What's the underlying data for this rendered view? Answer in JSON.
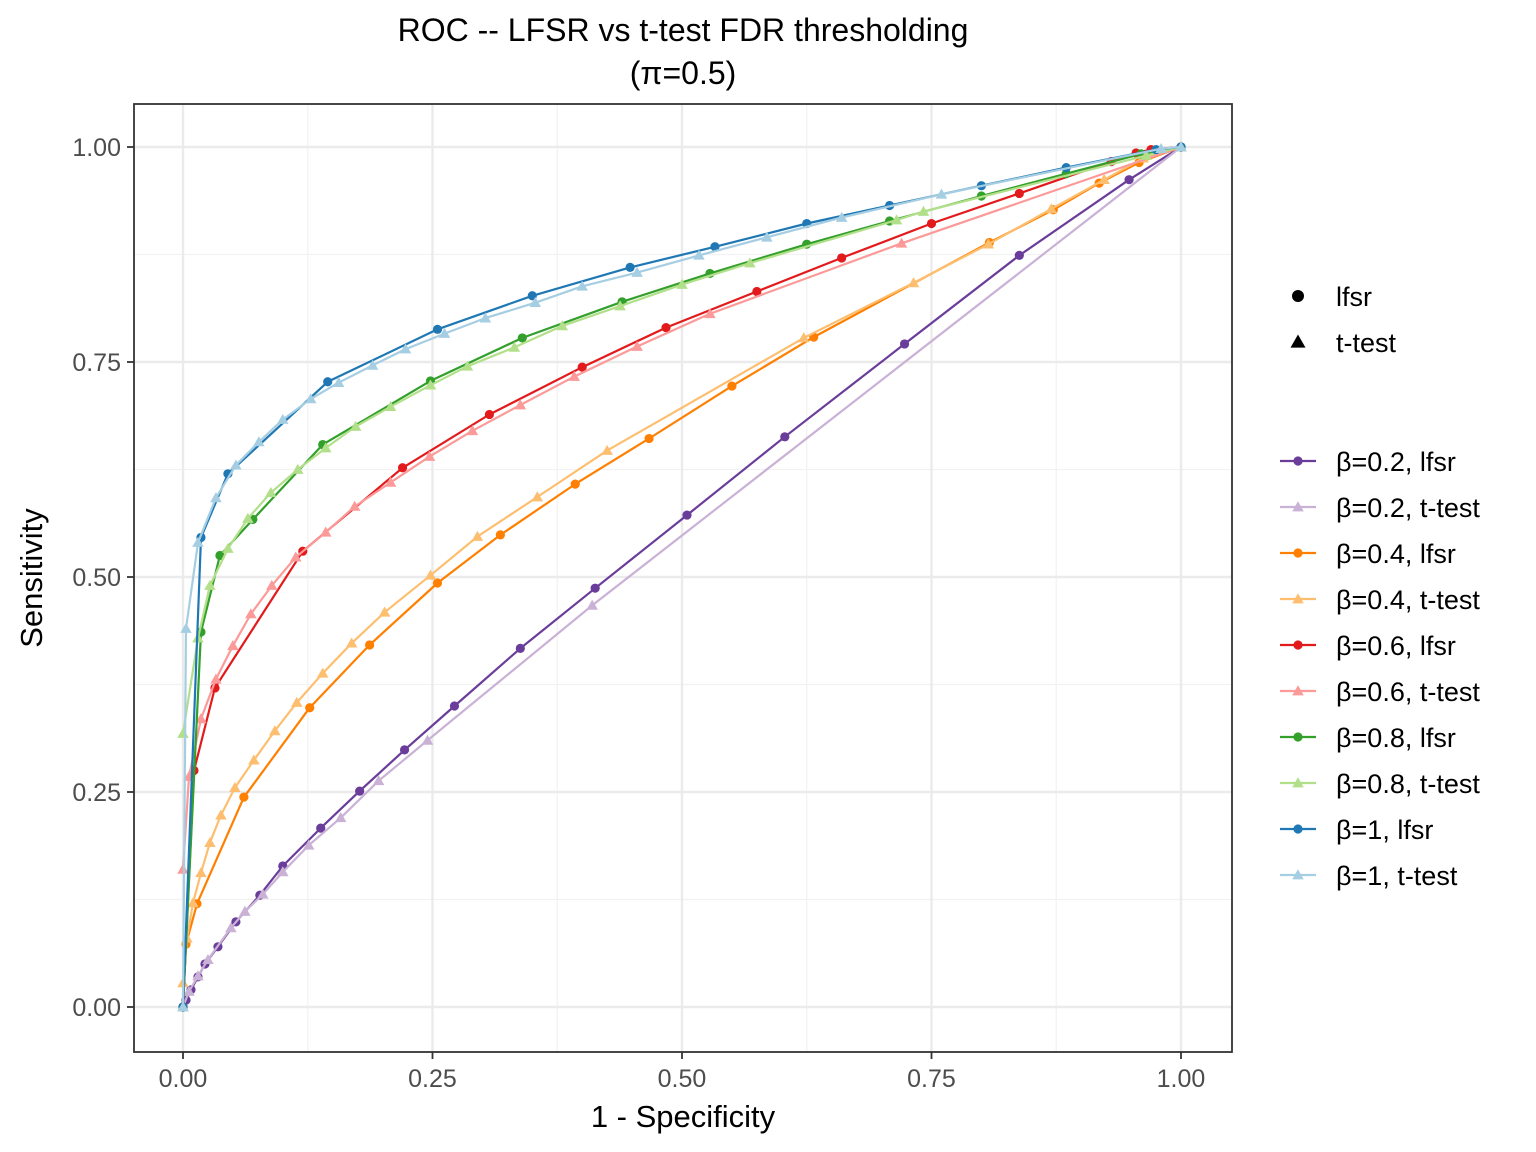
{
  "chart_data": {
    "type": "line",
    "title": "ROC -- LFSR vs t-test FDR thresholding",
    "subtitle": "(π=0.5)",
    "xlabel": "1 - Specificity",
    "ylabel": "Sensitivity",
    "xlim": [
      0,
      1
    ],
    "ylim": [
      0,
      1
    ],
    "xticks": [
      "0.00",
      "0.25",
      "0.50",
      "0.75",
      "1.00"
    ],
    "yticks": [
      "0.00",
      "0.25",
      "0.50",
      "0.75",
      "1.00"
    ],
    "grid": true,
    "legend_position": "right",
    "shape_legend": [
      {
        "label": "lfsr",
        "shape": "circle"
      },
      {
        "label": "t-test",
        "shape": "triangle"
      }
    ],
    "series": [
      {
        "name": "β=0.2, lfsr",
        "color": "#6a3d9a",
        "shape": "circle",
        "x": [
          0,
          0.003,
          0.008,
          0.015,
          0.022,
          0.035,
          0.053,
          0.077,
          0.1,
          0.138,
          0.177,
          0.222,
          0.272,
          0.338,
          0.413,
          0.505,
          0.603,
          0.723,
          0.838,
          0.948,
          1
        ],
        "y": [
          0,
          0.008,
          0.02,
          0.035,
          0.05,
          0.07,
          0.099,
          0.13,
          0.164,
          0.208,
          0.251,
          0.299,
          0.35,
          0.417,
          0.487,
          0.572,
          0.663,
          0.771,
          0.874,
          0.962,
          1
        ]
      },
      {
        "name": "β=0.2, t-test",
        "color": "#cab2d6",
        "shape": "triangle",
        "x": [
          0,
          0.006,
          0.015,
          0.025,
          0.048,
          0.062,
          0.08,
          0.1,
          0.126,
          0.158,
          0.196,
          0.245,
          0.41,
          1
        ],
        "y": [
          0,
          0.018,
          0.036,
          0.055,
          0.092,
          0.111,
          0.131,
          0.157,
          0.188,
          0.22,
          0.263,
          0.31,
          0.467,
          1
        ]
      },
      {
        "name": "β=0.4, lfsr",
        "color": "#ff7f00",
        "shape": "circle",
        "x": [
          0,
          0.003,
          0.014,
          0.061,
          0.127,
          0.187,
          0.255,
          0.318,
          0.393,
          0.467,
          0.55,
          0.632,
          0.808,
          0.872,
          0.918,
          0.958,
          1
        ],
        "y": [
          0,
          0.073,
          0.12,
          0.244,
          0.348,
          0.421,
          0.493,
          0.549,
          0.608,
          0.661,
          0.722,
          0.779,
          0.889,
          0.927,
          0.958,
          0.982,
          1
        ]
      },
      {
        "name": "β=0.4, t-test",
        "color": "#fdbf6f",
        "shape": "triangle",
        "x": [
          0,
          0.004,
          0.01,
          0.018,
          0.027,
          0.038,
          0.052,
          0.071,
          0.092,
          0.114,
          0.14,
          0.169,
          0.202,
          0.248,
          0.295,
          0.355,
          0.425,
          0.622,
          0.732,
          0.807,
          0.87,
          0.923,
          0.962,
          1
        ],
        "y": [
          0.028,
          0.08,
          0.121,
          0.156,
          0.191,
          0.223,
          0.255,
          0.287,
          0.321,
          0.354,
          0.388,
          0.423,
          0.459,
          0.502,
          0.547,
          0.593,
          0.647,
          0.778,
          0.842,
          0.887,
          0.928,
          0.962,
          0.987,
          1
        ]
      },
      {
        "name": "β=0.6, lfsr",
        "color": "#e31a1c",
        "shape": "circle",
        "x": [
          0,
          0.011,
          0.032,
          0.12,
          0.22,
          0.307,
          0.4,
          0.484,
          0.575,
          0.66,
          0.75,
          0.838,
          0.93,
          0.955,
          0.97,
          1
        ],
        "y": [
          0,
          0.275,
          0.371,
          0.53,
          0.627,
          0.689,
          0.744,
          0.79,
          0.832,
          0.871,
          0.911,
          0.946,
          0.983,
          0.993,
          0.997,
          1
        ]
      },
      {
        "name": "β=0.6, t-test",
        "color": "#fb9a99",
        "shape": "triangle",
        "x": [
          0,
          0.006,
          0.018,
          0.033,
          0.05,
          0.068,
          0.089,
          0.113,
          0.143,
          0.172,
          0.208,
          0.247,
          0.29,
          0.338,
          0.392,
          0.455,
          0.528,
          0.72,
          1
        ],
        "y": [
          0.16,
          0.268,
          0.335,
          0.381,
          0.42,
          0.457,
          0.49,
          0.523,
          0.552,
          0.582,
          0.61,
          0.64,
          0.67,
          0.7,
          0.733,
          0.768,
          0.806,
          0.888,
          1
        ]
      },
      {
        "name": "β=0.8, lfsr",
        "color": "#33a02c",
        "shape": "circle",
        "x": [
          0,
          0.018,
          0.037,
          0.07,
          0.14,
          0.248,
          0.34,
          0.44,
          0.528,
          0.625,
          0.708,
          0.8,
          0.885,
          0.96,
          1
        ],
        "y": [
          0,
          0.436,
          0.525,
          0.567,
          0.654,
          0.728,
          0.778,
          0.82,
          0.853,
          0.887,
          0.914,
          0.943,
          0.969,
          0.992,
          1
        ]
      },
      {
        "name": "β=0.8, t-test",
        "color": "#b2df8a",
        "shape": "triangle",
        "x": [
          0,
          0.015,
          0.027,
          0.045,
          0.065,
          0.088,
          0.115,
          0.143,
          0.173,
          0.208,
          0.248,
          0.285,
          0.332,
          0.38,
          0.438,
          0.5,
          0.568,
          0.715,
          0.742,
          0.965,
          1
        ],
        "y": [
          0.318,
          0.429,
          0.49,
          0.533,
          0.568,
          0.598,
          0.625,
          0.65,
          0.675,
          0.698,
          0.723,
          0.745,
          0.767,
          0.792,
          0.815,
          0.84,
          0.865,
          0.915,
          0.925,
          0.99,
          1
        ]
      },
      {
        "name": "β=1, lfsr",
        "color": "#1f78b4",
        "shape": "circle",
        "x": [
          0,
          0.018,
          0.045,
          0.145,
          0.255,
          0.35,
          0.448,
          0.533,
          0.625,
          0.708,
          0.8,
          0.885,
          0.975,
          1
        ],
        "y": [
          0,
          0.546,
          0.62,
          0.727,
          0.788,
          0.827,
          0.86,
          0.884,
          0.911,
          0.932,
          0.955,
          0.976,
          0.997,
          1
        ]
      },
      {
        "name": "β=1, t-test",
        "color": "#a6cee3",
        "shape": "triangle",
        "x": [
          0,
          0.003,
          0.015,
          0.033,
          0.053,
          0.076,
          0.1,
          0.128,
          0.156,
          0.19,
          0.223,
          0.262,
          0.303,
          0.353,
          0.4,
          0.455,
          0.517,
          0.585,
          0.66,
          0.76,
          0.98,
          1
        ],
        "y": [
          0,
          0.44,
          0.54,
          0.592,
          0.63,
          0.657,
          0.683,
          0.707,
          0.726,
          0.746,
          0.765,
          0.783,
          0.801,
          0.819,
          0.838,
          0.854,
          0.874,
          0.895,
          0.918,
          0.945,
          0.998,
          1
        ]
      }
    ]
  }
}
